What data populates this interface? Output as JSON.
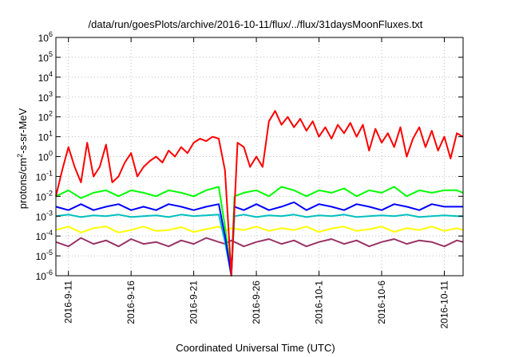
{
  "chart_data": {
    "type": "line",
    "title": "/data/run/goesPlots/archive/2016-10-11/flux/../flux/31daysMoonFluxes.txt",
    "xlabel": "Coordinated Universal Time (UTC)",
    "ylabel": {
      "prefix": "protons/cm",
      "sup": "2",
      "suffix": "-s-sr-MeV"
    },
    "xlim": [
      "2016-09-10",
      "2016-10-12 12:00"
    ],
    "ylim": [
      1e-06,
      1000000.0
    ],
    "yscale": "log",
    "grid": true,
    "x_ticks": [
      {
        "date": "2016-09-11",
        "label": "2016-9-11"
      },
      {
        "date": "2016-09-16",
        "label": "2016-9-16"
      },
      {
        "date": "2016-09-21",
        "label": "2016-9-21"
      },
      {
        "date": "2016-09-26",
        "label": "2016-9-26"
      },
      {
        "date": "2016-10-01",
        "label": "2016-10-1"
      },
      {
        "date": "2016-10-06",
        "label": "2016-10-6"
      },
      {
        "date": "2016-10-11",
        "label": "2016-10-11"
      }
    ],
    "y_ticks": [
      {
        "value": 1e-06,
        "base": "10",
        "exp": "-6"
      },
      {
        "value": 1e-05,
        "base": "10",
        "exp": "-5"
      },
      {
        "value": 0.0001,
        "base": "10",
        "exp": "-4"
      },
      {
        "value": 0.001,
        "base": "10",
        "exp": "-3"
      },
      {
        "value": 0.01,
        "base": "10",
        "exp": "-2"
      },
      {
        "value": 0.1,
        "base": "10",
        "exp": "-1"
      },
      {
        "value": 1,
        "base": "10",
        "exp": "0"
      },
      {
        "value": 10,
        "base": "10",
        "exp": "1"
      },
      {
        "value": 100,
        "base": "10",
        "exp": "2"
      },
      {
        "value": 1000,
        "base": "10",
        "exp": "3"
      },
      {
        "value": 10000,
        "base": "10",
        "exp": "4"
      },
      {
        "value": 100000,
        "base": "10",
        "exp": "5"
      },
      {
        "value": 1000000,
        "base": "10",
        "exp": "6"
      }
    ],
    "series": [
      {
        "color": "#ff0000",
        "x": [
          "2016-09-10",
          "2016-09-10 12:00",
          "2016-09-11",
          "2016-09-11 12:00",
          "2016-09-12",
          "2016-09-12 12:00",
          "2016-09-13",
          "2016-09-13 12:00",
          "2016-09-14",
          "2016-09-14 12:00",
          "2016-09-15",
          "2016-09-15 12:00",
          "2016-09-16",
          "2016-09-16 12:00",
          "2016-09-17",
          "2016-09-17 12:00",
          "2016-09-18",
          "2016-09-18 12:00",
          "2016-09-19",
          "2016-09-19 12:00",
          "2016-09-20",
          "2016-09-20 12:00",
          "2016-09-21",
          "2016-09-21 12:00",
          "2016-09-22",
          "2016-09-22 12:00",
          "2016-09-23",
          "2016-09-23 12:00",
          "2016-09-24",
          "2016-09-24 12:00",
          "2016-09-25",
          "2016-09-25 12:00",
          "2016-09-26",
          "2016-09-26 12:00",
          "2016-09-27",
          "2016-09-27 12:00",
          "2016-09-28",
          "2016-09-28 12:00",
          "2016-09-29",
          "2016-09-29 12:00",
          "2016-09-30",
          "2016-09-30 12:00",
          "2016-10-01",
          "2016-10-01 12:00",
          "2016-10-02",
          "2016-10-02 12:00",
          "2016-10-03",
          "2016-10-03 12:00",
          "2016-10-04",
          "2016-10-04 12:00",
          "2016-10-05",
          "2016-10-05 12:00",
          "2016-10-06",
          "2016-10-06 12:00",
          "2016-10-07",
          "2016-10-07 12:00",
          "2016-10-08",
          "2016-10-08 12:00",
          "2016-10-09",
          "2016-10-09 12:00",
          "2016-10-10",
          "2016-10-10 12:00",
          "2016-10-11",
          "2016-10-11 12:00",
          "2016-10-12",
          "2016-10-12 12:00"
        ],
        "y": [
          0.01,
          0.2,
          3,
          0.3,
          0.05,
          5,
          0.1,
          0.3,
          4,
          0.05,
          0.1,
          0.5,
          1.5,
          0.1,
          0.3,
          0.6,
          1,
          0.5,
          2,
          1,
          3,
          1.5,
          5,
          8,
          6,
          10,
          8,
          0.2,
          1e-06,
          5,
          3,
          0.3,
          1,
          0.3,
          60,
          200,
          40,
          100,
          30,
          80,
          20,
          60,
          10,
          30,
          8,
          40,
          15,
          50,
          10,
          40,
          2,
          25,
          5,
          15,
          3,
          30,
          1,
          8,
          30,
          3,
          20,
          2,
          10,
          0.8,
          15,
          10
        ]
      },
      {
        "color": "#00ff00",
        "x": [
          "2016-09-10",
          "2016-09-11",
          "2016-09-12",
          "2016-09-13",
          "2016-09-14",
          "2016-09-15",
          "2016-09-16",
          "2016-09-17",
          "2016-09-18",
          "2016-09-19",
          "2016-09-20",
          "2016-09-21",
          "2016-09-22",
          "2016-09-23",
          "2016-09-23 12:00",
          "2016-09-24",
          "2016-09-24 06:00",
          "2016-09-25",
          "2016-09-26",
          "2016-09-27",
          "2016-09-28",
          "2016-09-29",
          "2016-09-30",
          "2016-10-01",
          "2016-10-02",
          "2016-10-03",
          "2016-10-04",
          "2016-10-05",
          "2016-10-06",
          "2016-10-07",
          "2016-10-08",
          "2016-10-09",
          "2016-10-10",
          "2016-10-11",
          "2016-10-12",
          "2016-10-12 12:00"
        ],
        "y": [
          0.01,
          0.02,
          0.008,
          0.015,
          0.02,
          0.01,
          0.02,
          0.015,
          0.01,
          0.02,
          0.015,
          0.01,
          0.02,
          0.03,
          0.0003,
          1e-06,
          0.01,
          0.015,
          0.02,
          0.01,
          0.03,
          0.02,
          0.01,
          0.02,
          0.015,
          0.025,
          0.01,
          0.02,
          0.015,
          0.03,
          0.01,
          0.02,
          0.015,
          0.02,
          0.02,
          0.015
        ]
      },
      {
        "color": "#0000ff",
        "x": [
          "2016-09-10",
          "2016-09-11",
          "2016-09-12",
          "2016-09-13",
          "2016-09-14",
          "2016-09-15",
          "2016-09-16",
          "2016-09-17",
          "2016-09-18",
          "2016-09-19",
          "2016-09-20",
          "2016-09-21",
          "2016-09-22",
          "2016-09-23",
          "2016-09-23 12:00",
          "2016-09-24",
          "2016-09-24 06:00",
          "2016-09-25",
          "2016-09-26",
          "2016-09-27",
          "2016-09-28",
          "2016-09-29",
          "2016-09-30",
          "2016-10-01",
          "2016-10-02",
          "2016-10-03",
          "2016-10-04",
          "2016-10-05",
          "2016-10-06",
          "2016-10-07",
          "2016-10-08",
          "2016-10-09",
          "2016-10-10",
          "2016-10-11",
          "2016-10-12",
          "2016-10-12 12:00"
        ],
        "y": [
          0.003,
          0.002,
          0.004,
          0.002,
          0.003,
          0.004,
          0.002,
          0.003,
          0.002,
          0.004,
          0.003,
          0.002,
          0.003,
          0.004,
          0.0001,
          1e-06,
          0.003,
          0.002,
          0.004,
          0.002,
          0.003,
          0.005,
          0.002,
          0.004,
          0.003,
          0.002,
          0.004,
          0.003,
          0.002,
          0.004,
          0.003,
          0.002,
          0.004,
          0.003,
          0.003,
          0.003
        ]
      },
      {
        "color": "#00c0c0",
        "x": [
          "2016-09-10",
          "2016-09-11",
          "2016-09-12",
          "2016-09-13",
          "2016-09-14",
          "2016-09-15",
          "2016-09-16",
          "2016-09-17",
          "2016-09-18",
          "2016-09-19",
          "2016-09-20",
          "2016-09-21",
          "2016-09-22",
          "2016-09-23",
          "2016-09-23 12:00",
          "2016-09-24",
          "2016-09-24 06:00",
          "2016-09-25",
          "2016-09-26",
          "2016-09-27",
          "2016-09-28",
          "2016-09-29",
          "2016-09-30",
          "2016-10-01",
          "2016-10-02",
          "2016-10-03",
          "2016-10-04",
          "2016-10-05",
          "2016-10-06",
          "2016-10-07",
          "2016-10-08",
          "2016-10-09",
          "2016-10-10",
          "2016-10-11",
          "2016-10-12",
          "2016-10-12 12:00"
        ],
        "y": [
          0.001,
          0.0012,
          0.0009,
          0.0011,
          0.001,
          0.0012,
          0.0009,
          0.001,
          0.0011,
          0.0009,
          0.0012,
          0.001,
          0.0011,
          0.0012,
          5e-05,
          1e-06,
          0.001,
          0.0012,
          0.0009,
          0.0011,
          0.001,
          0.0012,
          0.0009,
          0.0011,
          0.001,
          0.0012,
          0.0009,
          0.001,
          0.0011,
          0.001,
          0.0012,
          0.0009,
          0.001,
          0.0011,
          0.001,
          0.001
        ]
      },
      {
        "color": "#ffff00",
        "x": [
          "2016-09-10",
          "2016-09-11",
          "2016-09-12",
          "2016-09-13",
          "2016-09-14",
          "2016-09-15",
          "2016-09-16",
          "2016-09-17",
          "2016-09-18",
          "2016-09-19",
          "2016-09-20",
          "2016-09-21",
          "2016-09-22",
          "2016-09-23",
          "2016-09-23 12:00",
          "2016-09-24",
          "2016-09-25",
          "2016-09-26",
          "2016-09-27",
          "2016-09-28",
          "2016-09-29",
          "2016-09-30",
          "2016-10-01",
          "2016-10-02",
          "2016-10-03",
          "2016-10-04",
          "2016-10-05",
          "2016-10-06",
          "2016-10-07",
          "2016-10-08",
          "2016-10-09",
          "2016-10-10",
          "2016-10-11",
          "2016-10-12",
          "2016-10-12 12:00"
        ],
        "y": [
          0.0002,
          0.0003,
          0.00015,
          0.00025,
          0.0003,
          0.00015,
          0.0002,
          0.0003,
          0.00018,
          0.0002,
          0.00028,
          0.00016,
          0.00022,
          0.0003,
          0.00018,
          0.00025,
          0.0002,
          0.0003,
          0.00018,
          0.00025,
          0.0002,
          0.0003,
          0.00016,
          0.00024,
          0.0003,
          0.00018,
          0.00022,
          0.0003,
          0.00016,
          0.00025,
          0.0002,
          0.0003,
          0.00018,
          0.00025,
          0.0002
        ]
      },
      {
        "color": "#993366",
        "x": [
          "2016-09-10",
          "2016-09-11",
          "2016-09-12",
          "2016-09-13",
          "2016-09-14",
          "2016-09-15",
          "2016-09-16",
          "2016-09-17",
          "2016-09-18",
          "2016-09-19",
          "2016-09-20",
          "2016-09-21",
          "2016-09-22",
          "2016-09-23",
          "2016-09-23 12:00",
          "2016-09-24",
          "2016-09-25",
          "2016-09-26",
          "2016-09-27",
          "2016-09-28",
          "2016-09-29",
          "2016-09-30",
          "2016-10-01",
          "2016-10-02",
          "2016-10-03",
          "2016-10-04",
          "2016-10-05",
          "2016-10-06",
          "2016-10-07",
          "2016-10-08",
          "2016-10-09",
          "2016-10-10",
          "2016-10-11",
          "2016-10-12",
          "2016-10-12 12:00"
        ],
        "y": [
          5e-05,
          3e-05,
          8e-05,
          4e-05,
          6e-05,
          3e-05,
          7e-05,
          4e-05,
          5e-05,
          3e-05,
          6e-05,
          4e-05,
          8e-05,
          5e-05,
          4e-05,
          6e-05,
          3e-05,
          5e-05,
          7e-05,
          4e-05,
          6e-05,
          3e-05,
          5e-05,
          7e-05,
          4e-05,
          6e-05,
          3e-05,
          5e-05,
          7e-05,
          4e-05,
          6e-05,
          5e-05,
          3e-05,
          6e-05,
          5e-05
        ]
      }
    ]
  }
}
